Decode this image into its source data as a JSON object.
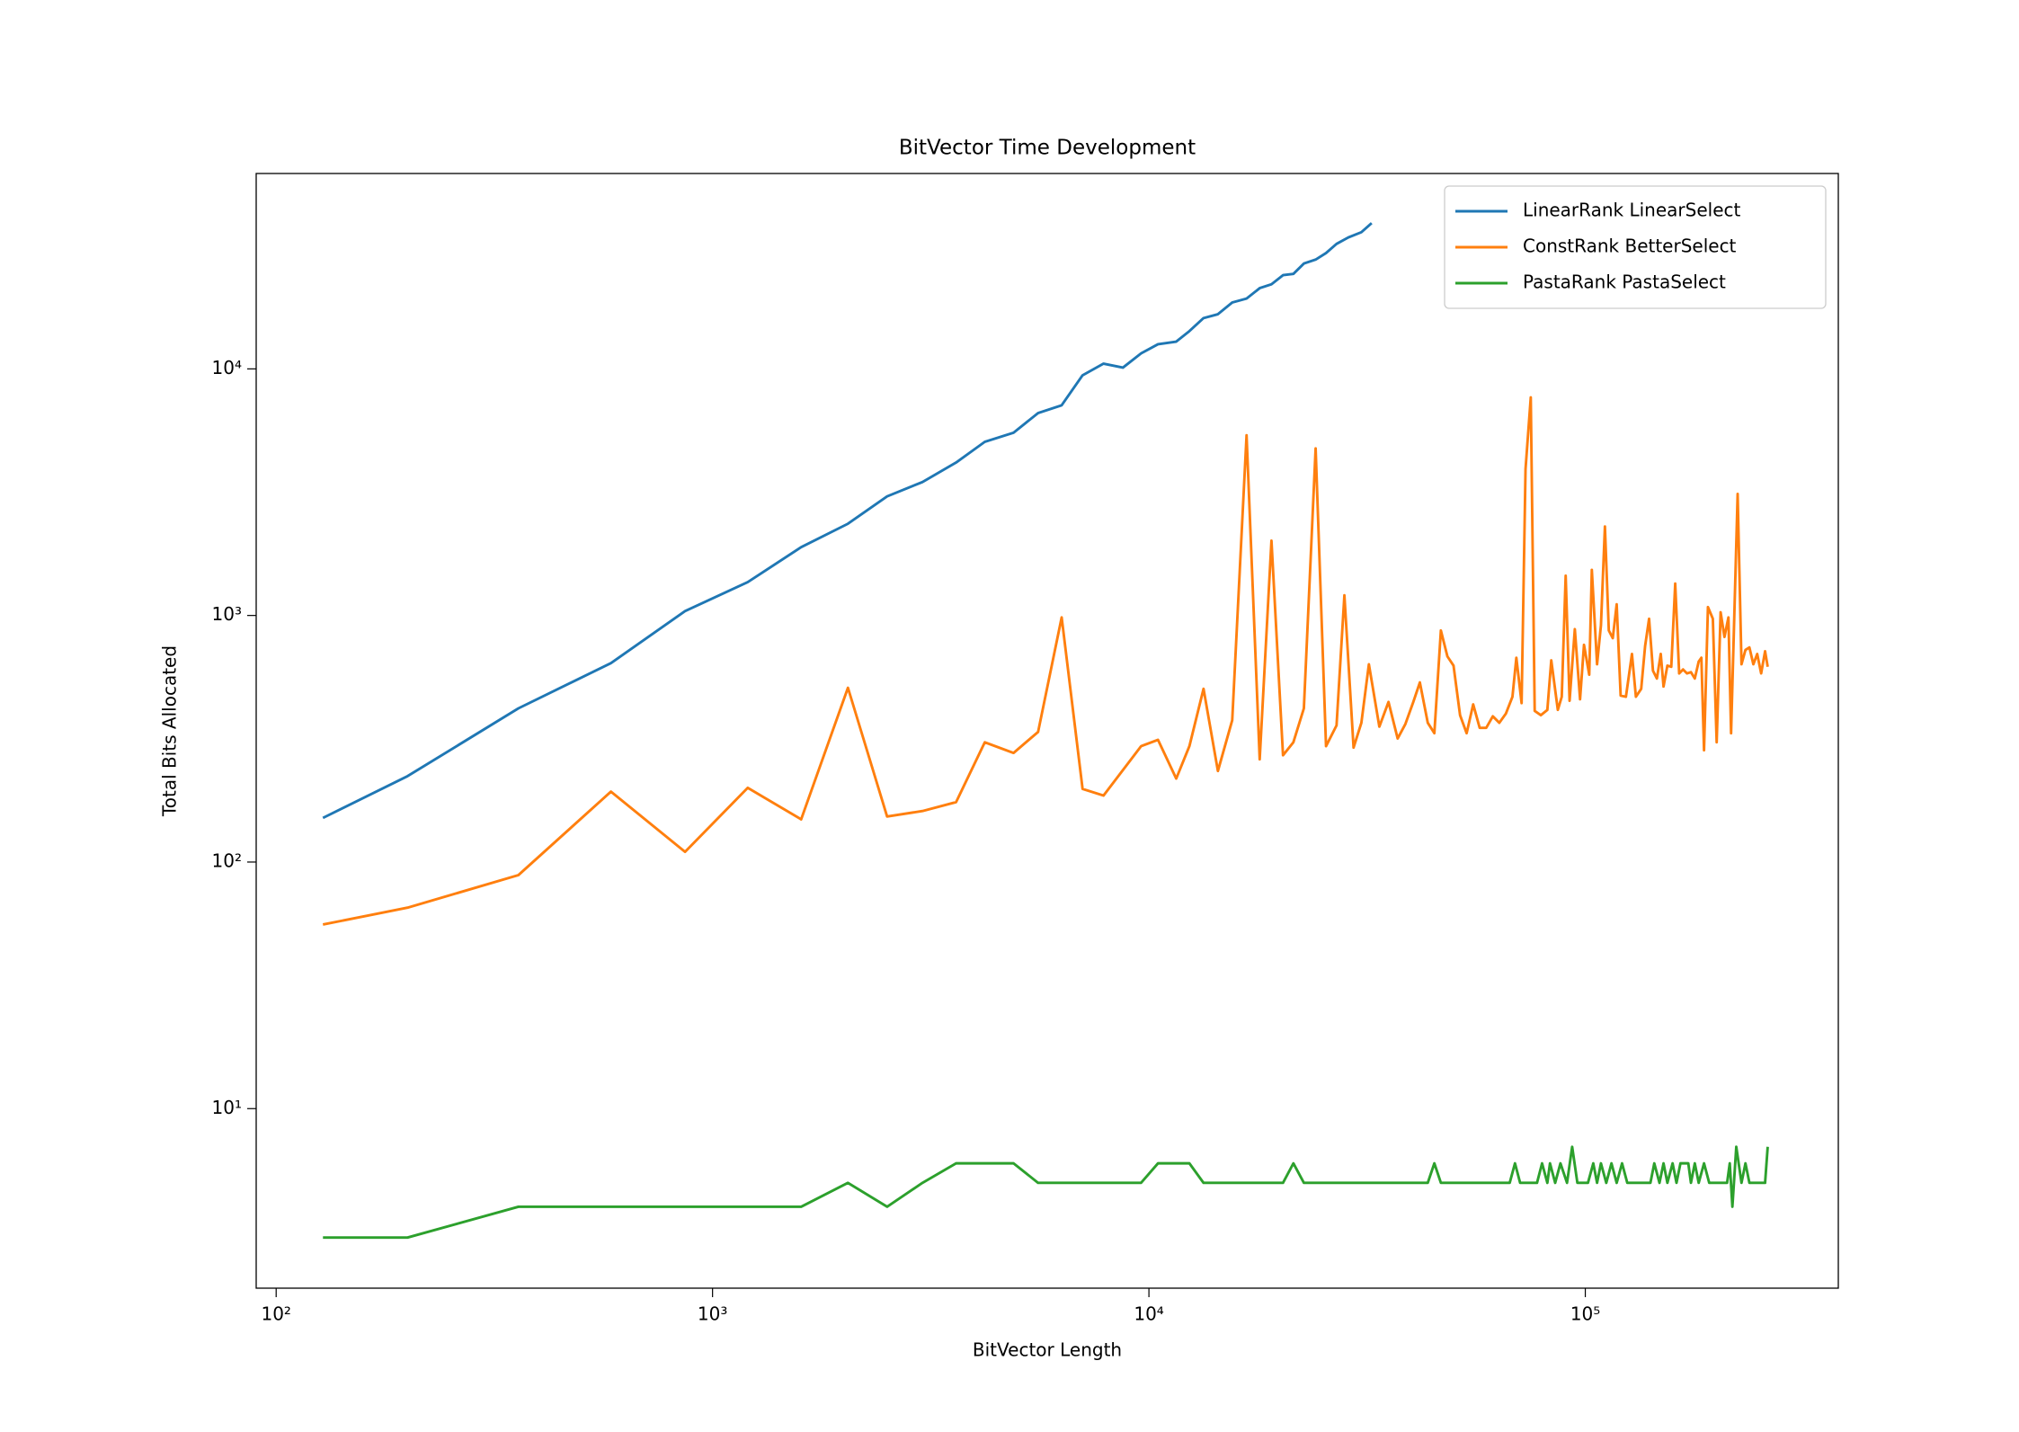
{
  "chart_data": {
    "type": "line",
    "title": "BitVector Time Development",
    "x_label": "BitVector Length",
    "y_label": "Total Bits Allocated",
    "xscale": "log",
    "yscale": "log",
    "xlim": [
      90,
      380000
    ],
    "ylim": [
      1.87,
      62000
    ],
    "xticks": [
      {
        "value": 100,
        "label": "10²"
      },
      {
        "value": 1000,
        "label": "10³"
      },
      {
        "value": 10000,
        "label": "10⁴"
      },
      {
        "value": 100000,
        "label": "10⁵"
      }
    ],
    "yticks": [
      {
        "value": 10,
        "label": "10¹"
      },
      {
        "value": 100,
        "label": "10²"
      },
      {
        "value": 1000,
        "label": "10³"
      },
      {
        "value": 10000,
        "label": "10⁴"
      }
    ],
    "grid": false,
    "legend": "upper right",
    "series": [
      {
        "name": "LinearRank LinearSelect",
        "color": "#1f77b4",
        "x": [
          128,
          200,
          359,
          585,
          865,
          1204,
          1596,
          2043,
          2512,
          3027,
          3615,
          4206,
          4895,
          5572,
          6310,
          7046,
          7870,
          8718,
          9594,
          10490,
          11550,
          12380,
          13340,
          14390,
          15520,
          16740,
          17940,
          19090,
          20290,
          21430,
          22650,
          24100,
          25460,
          26910,
          28640,
          30680,
          32390
        ],
        "values": [
          151,
          223,
          420,
          641,
          1042,
          1365,
          1892,
          2355,
          3040,
          3476,
          4170,
          5060,
          5510,
          6620,
          7120,
          9420,
          10500,
          10120,
          11560,
          12590,
          12900,
          14230,
          16070,
          16660,
          18590,
          19290,
          21250,
          22040,
          23990,
          24280,
          26740,
          27740,
          29500,
          32130,
          34130,
          35830,
          39020
        ]
      },
      {
        "name": "ConstRank BetterSelect",
        "color": "#ff7f0e",
        "x": [
          128,
          200,
          359,
          585,
          865,
          1204,
          1596,
          2043,
          2512,
          3027,
          3615,
          4206,
          4895,
          5572,
          6310,
          7046,
          7870,
          9594,
          10490,
          11550,
          12380,
          13340,
          14390,
          15520,
          16740,
          17940,
          19090,
          20290,
          21430,
          22650,
          24100,
          25460,
          26910,
          28050,
          29440,
          30680,
          31920,
          33730,
          35400,
          37150,
          38700,
          40350,
          41770,
          43550,
          45090,
          46670,
          48310,
          49890,
          51640,
          53460,
          55340,
          57280,
          59290,
          61380,
          63530,
          65770,
          68080,
          69500,
          71450,
          72950,
          74990,
          76560,
          79070,
          81850,
          83560,
          86500,
          88310,
          90160,
          92040,
          94620,
          97270,
          99310,
          102100,
          103500,
          106400,
          108600,
          110900,
          113200,
          115600,
          118000,
          120500,
          123900,
          127900,
          130600,
          134300,
          137100,
          140000,
          142900,
          145900,
          148900,
          151100,
          154200,
          157400,
          160700,
          164100,
          167500,
          171000,
          174600,
          178200,
          181900,
          184500,
          187100,
          191000,
          196000,
          200000,
          204200,
          208400,
          212800,
          215800,
          223400,
          228000,
          232800,
          237700,
          242700,
          247700,
          252900,
          258200,
          261800
        ],
        "values": [
          55.8,
          65.3,
          88.5,
          193,
          110,
          200,
          149,
          509,
          153,
          161,
          175,
          306,
          277,
          337,
          982,
          198,
          186,
          295,
          313,
          218,
          295,
          504,
          234,
          376,
          5380,
          261,
          2010,
          271,
          306,
          420,
          4760,
          295,
          358,
          1208,
          291,
          367,
          634,
          354,
          446,
          317,
          363,
          446,
          535,
          367,
          333,
          869,
          682,
          626,
          394,
          333,
          436,
          350,
          350,
          390,
          367,
          400,
          468,
          674,
          441,
          3926,
          7660,
          410,
          394,
          414,
          658,
          414,
          468,
          1449,
          451,
          880,
          457,
          760,
          575,
          1530,
          634,
          912,
          2296,
          869,
          809,
          1110,
          473,
          468,
          698,
          468,
          504,
          751,
          970,
          597,
          555,
          698,
          515,
          626,
          619,
          1346,
          582,
          604,
          582,
          589,
          555,
          650,
          674,
          284,
          1082,
          970,
          306,
          1031,
          818,
          982,
          333,
          3110,
          634,
          725,
          742,
          634,
          698,
          582,
          716,
          619
        ]
      },
      {
        "name": "PastaRank PastaSelect",
        "color": "#2ca02c",
        "x": [
          128,
          200,
          359,
          585,
          1596,
          2043,
          2512,
          3027,
          3615,
          4895,
          5572,
          9594,
          10490,
          12380,
          13340,
          20290,
          21430,
          22650,
          43550,
          45090,
          46670,
          67100,
          69000,
          70900,
          77500,
          79600,
          81850,
          83000,
          85300,
          87700,
          90800,
          93300,
          95900,
          101400,
          104300,
          106400,
          108600,
          111700,
          114800,
          118000,
          121400,
          124800,
          141000,
          143900,
          147900,
          151100,
          154200,
          158500,
          161800,
          165200,
          172200,
          174600,
          178200,
          181900,
          187100,
          192300,
          211300,
          214300,
          217300,
          221800,
          228000,
          232800,
          237700,
          258200,
          261800
        ],
        "values": [
          3,
          3,
          4,
          4,
          4,
          5,
          4,
          5,
          6,
          6,
          5,
          5,
          6,
          6,
          5,
          5,
          6,
          5,
          5,
          6,
          5,
          5,
          6,
          5,
          5,
          6,
          5,
          6,
          5,
          6,
          5,
          7,
          5,
          5,
          6,
          5,
          6,
          5,
          6,
          5,
          6,
          5,
          5,
          6,
          5,
          6,
          5,
          6,
          5,
          6,
          6,
          5,
          6,
          5,
          6,
          5,
          5,
          6,
          4,
          7,
          5,
          6,
          5,
          5,
          7
        ]
      }
    ]
  }
}
